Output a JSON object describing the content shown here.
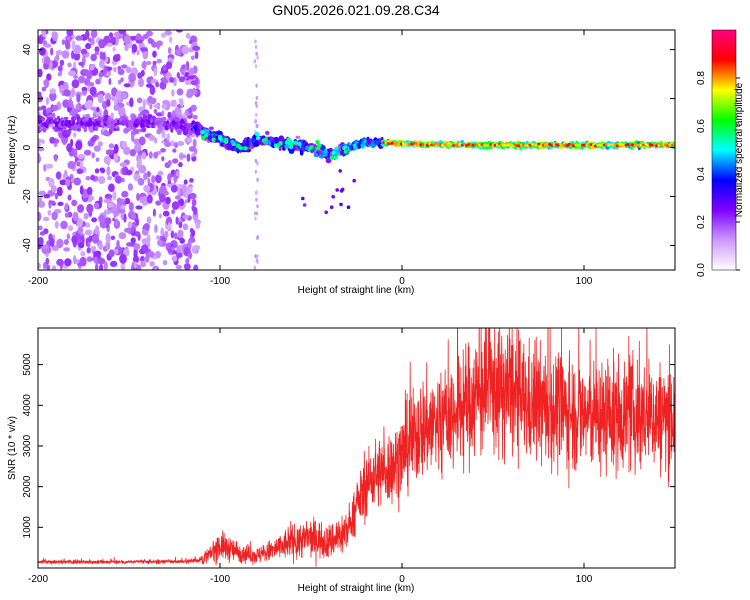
{
  "figure_title": "GN05.2026.021.09.28.C34",
  "chart_data": [
    {
      "type": "heatmap",
      "title": "GN05.2026.021.09.28.C34",
      "xlabel": "Height of straight line (km)",
      "ylabel": "Frequency (Hz)",
      "xlim": [
        -200,
        150
      ],
      "ylim": [
        -50,
        48
      ],
      "xticks": [
        -200,
        -100,
        0,
        100
      ],
      "xtick_labels": [
        "-200",
        "-100",
        "0",
        "100"
      ],
      "yticks": [
        -40,
        -20,
        0,
        20,
        40
      ],
      "ytick_labels": [
        "-40",
        "-20",
        "0",
        "20",
        "40"
      ],
      "colorbar": {
        "label": "Normalized spectral amplitude",
        "range": [
          0.0,
          1.0
        ],
        "ticks": [
          0.0,
          0.2,
          0.4,
          0.6,
          0.8
        ],
        "tick_labels": [
          "0.0",
          "0.2",
          "0.4",
          "0.6",
          "0.8"
        ],
        "colormap": [
          "#ffffff",
          "#cc99ff",
          "#8000ff",
          "#0000ff",
          "#00ffff",
          "#00ff00",
          "#ffff00",
          "#ff0000",
          "#ff0080"
        ]
      },
      "ridge": {
        "x": [
          -200,
          -150,
          -130,
          -115,
          -100,
          -90,
          -80,
          -70,
          -60,
          -50,
          -40,
          -30,
          -20,
          -10,
          0,
          50,
          100,
          150
        ],
        "frequency": [
          10,
          10,
          10,
          8,
          4,
          0,
          3,
          2,
          1,
          0,
          -3,
          0,
          2,
          2,
          1.5,
          1,
          1,
          1
        ]
      }
    },
    {
      "type": "line",
      "xlabel": "Height of straight line (km)",
      "ylabel": "SNR (10 * v/v)",
      "xlim": [
        -200,
        150
      ],
      "ylim": [
        0,
        5900
      ],
      "xticks": [
        -200,
        -100,
        0,
        100
      ],
      "xtick_labels": [
        "-200",
        "-100",
        "0",
        "100"
      ],
      "yticks": [
        1000,
        2000,
        3000,
        4000,
        5000
      ],
      "ytick_labels": [
        "1000",
        "2000",
        "3000",
        "4000",
        "5000"
      ],
      "series": [
        {
          "name": "SNR",
          "color": "#ee2222",
          "x": [
            -200,
            -150,
            -120,
            -110,
            -105,
            -100,
            -90,
            -80,
            -70,
            -60,
            -50,
            -40,
            -30,
            -25,
            -20,
            -15,
            -10,
            -5,
            0,
            10,
            20,
            30,
            40,
            50,
            60,
            70,
            80,
            90,
            100,
            110,
            120,
            130,
            140,
            150
          ],
          "y": [
            150,
            150,
            160,
            200,
            350,
            550,
            400,
            300,
            450,
            650,
            750,
            650,
            900,
            1500,
            2000,
            2300,
            2400,
            2500,
            2800,
            3400,
            3600,
            3800,
            4200,
            4400,
            4300,
            4000,
            3950,
            3850,
            3750,
            3700,
            3800,
            3750,
            3700,
            3750
          ]
        }
      ]
    }
  ]
}
